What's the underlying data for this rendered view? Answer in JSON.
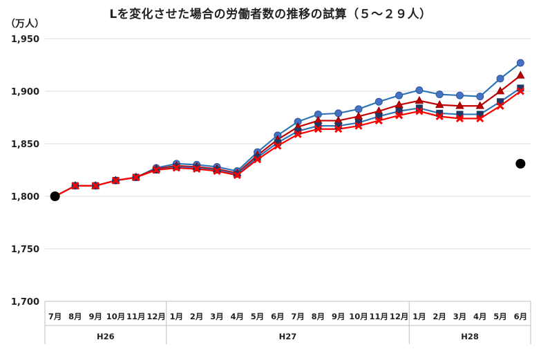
{
  "chart_data": {
    "type": "line",
    "title": "Lを変化させた場合の労働者数の推移の試算（５～２９人）",
    "unit_label": "（万人）",
    "categories": [
      "7月",
      "8月",
      "9月",
      "10月",
      "11月",
      "12月",
      "1月",
      "2月",
      "3月",
      "4月",
      "5月",
      "6月",
      "7月",
      "8月",
      "9月",
      "10月",
      "11月",
      "12月",
      "1月",
      "2月",
      "3月",
      "4月",
      "5月",
      "6月"
    ],
    "groups": [
      {
        "label": "H26",
        "start": 0,
        "end": 5
      },
      {
        "label": "H27",
        "start": 6,
        "end": 17
      },
      {
        "label": "H28",
        "start": 18,
        "end": 23
      }
    ],
    "yticks": [
      "1,950",
      "1,900",
      "1,850",
      "1,800",
      "1,750",
      "1,700"
    ],
    "ylim": [
      1700,
      1950
    ],
    "grid": true,
    "series": [
      {
        "color": "#2e75b6",
        "marker": "circle-blue",
        "values": [
          1800,
          1810,
          1810,
          1815,
          1818,
          1827,
          1831,
          1830,
          1828,
          1824,
          1842,
          1858,
          1871,
          1878,
          1879,
          1883,
          1890,
          1896,
          1901,
          1897,
          1896,
          1895,
          1912,
          1927
        ]
      },
      {
        "color": "#c00000",
        "marker": "triangle",
        "values": [
          1800,
          1810,
          1810,
          1815,
          1818,
          1826,
          1829,
          1828,
          1826,
          1822,
          1839,
          1854,
          1866,
          1872,
          1872,
          1876,
          1881,
          1887,
          1891,
          1887,
          1886,
          1886,
          1900,
          1915
        ]
      },
      {
        "color": "#2e75b6",
        "marker": "square",
        "values": [
          1800,
          1810,
          1810,
          1815,
          1818,
          1825,
          1828,
          1827,
          1825,
          1821,
          1837,
          1851,
          1862,
          1867,
          1867,
          1870,
          1876,
          1881,
          1884,
          1879,
          1878,
          1878,
          1890,
          1903
        ]
      },
      {
        "color": "#ff0000",
        "marker": "x",
        "values": [
          1800,
          1810,
          1810,
          1815,
          1818,
          1825,
          1827,
          1826,
          1824,
          1820,
          1835,
          1848,
          1859,
          1864,
          1864,
          1867,
          1872,
          1877,
          1881,
          1876,
          1874,
          1874,
          1886,
          1900
        ]
      }
    ],
    "extra_points": [
      {
        "category_index": 0,
        "value": 1800,
        "color": "#000000"
      },
      {
        "category_index": 23,
        "value": 1831,
        "color": "#000000"
      }
    ]
  }
}
